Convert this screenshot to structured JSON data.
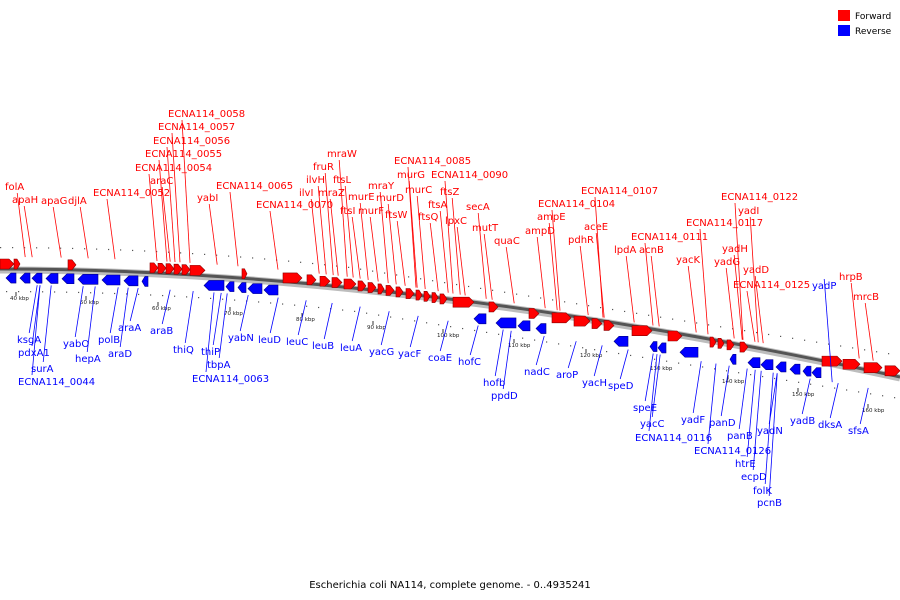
{
  "caption": "Escherichia coli NA114, complete genome. - 0..4935241",
  "legend": {
    "forward": {
      "label": "Forward",
      "color": "#ff0000"
    },
    "reverse": {
      "label": "Reverse",
      "color": "#0000ff"
    }
  },
  "ticks": [
    "40 kbp",
    "50 kbp",
    "60 kbp",
    "70 kbp",
    "80 kbp",
    "90 kbp",
    "100 kbp",
    "110 kbp",
    "120 kbp",
    "130 kbp",
    "140 kbp",
    "150 kbp",
    "160 kbp"
  ],
  "forward_labels": [
    "folA",
    "apaH",
    "apaG",
    "djlA",
    "ECNA114_0052",
    "araC",
    "ECNA114_0054",
    "ECNA114_0055",
    "ECNA114_0056",
    "ECNA114_0057",
    "ECNA114_0058",
    "yabI",
    "ECNA114_0065",
    "ECNA114_0070",
    "ilvI",
    "ilvH",
    "fruR",
    "mraZ",
    "ftsL",
    "mraW",
    "ftsI",
    "murF",
    "murE",
    "mraY",
    "murD",
    "ftsW",
    "murG",
    "murC",
    "ECNA114_0085",
    "ftsQ",
    "ftsA",
    "ftsZ",
    "lpxC",
    "secA",
    "ECNA114_0090",
    "mutT",
    "quaC",
    "ampD",
    "ampE",
    "ECNA114_0104",
    "pdhR",
    "aceE",
    "ECNA114_0107",
    "lpdA",
    "acnB",
    "ECNA114_0111",
    "yacK",
    "yadG",
    "ECNA114_0117",
    "yadH",
    "yadI",
    "ECNA114_0122",
    "yadD",
    "ECNA114_0125",
    "hrpB",
    "mrcB"
  ],
  "reverse_labels": [
    "ksgA",
    "pdxA1",
    "surA",
    "ECNA114_0044",
    "yabO",
    "hepA",
    "polB",
    "araD",
    "araA",
    "araB",
    "thiQ",
    "thiP",
    "tbpA",
    "ECNA114_0063",
    "yabN",
    "leuD",
    "leuC",
    "leuB",
    "leuA",
    "yacG",
    "yacF",
    "coaE",
    "hofC",
    "hofb",
    "ppdD",
    "nadC",
    "aroP",
    "yacH",
    "speD",
    "speE",
    "yacC",
    "ECNA114_0116",
    "yadF",
    "panD",
    "panB",
    "ECNA114_0126",
    "htrE",
    "ecpD",
    "folK",
    "pcnB",
    "yadN",
    "yadB",
    "dksA",
    "sfsA",
    "yadP"
  ]
}
